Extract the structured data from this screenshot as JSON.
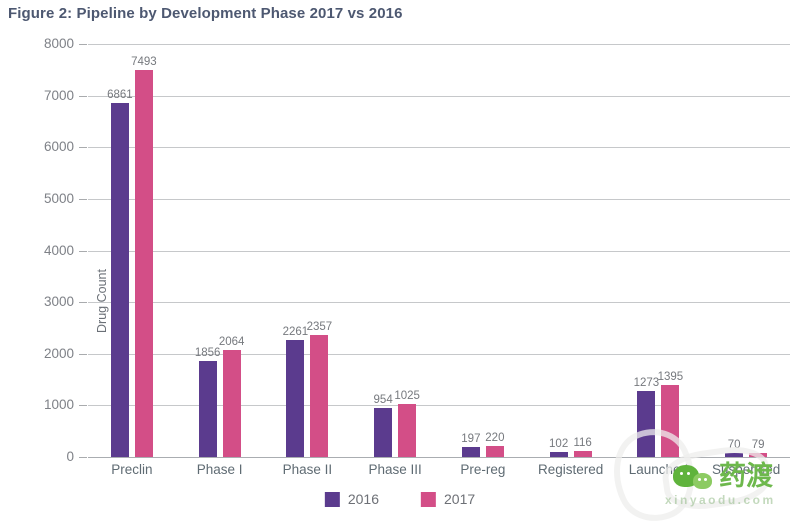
{
  "title": "Figure 2: Pipeline by Development Phase 2017 vs 2016",
  "chart_data": {
    "type": "bar",
    "title": "Figure 2: Pipeline by Development Phase 2017 vs 2016",
    "categories": [
      "Preclin",
      "Phase I",
      "Phase II",
      "Phase III",
      "Pre-reg",
      "Registered",
      "Launched",
      "Suspended"
    ],
    "series": [
      {
        "name": "2016",
        "color": "#5b3b8e",
        "values": [
          6861,
          1856,
          2261,
          954,
          197,
          102,
          1273,
          70
        ]
      },
      {
        "name": "2017",
        "color": "#d34e87",
        "values": [
          7493,
          2064,
          2357,
          1025,
          220,
          116,
          1395,
          79
        ]
      }
    ],
    "xlabel": "",
    "ylabel": "Drug Count",
    "ylim": [
      0,
      8000
    ],
    "yticks": [
      0,
      1000,
      2000,
      3000,
      4000,
      5000,
      6000,
      7000,
      8000
    ],
    "grid": true,
    "legend_position": "bottom"
  },
  "watermark": {
    "brand": "药渡",
    "domain": "xinyaodu.com",
    "icon": "chat-bubbles-icon",
    "color": "#6db84c"
  }
}
